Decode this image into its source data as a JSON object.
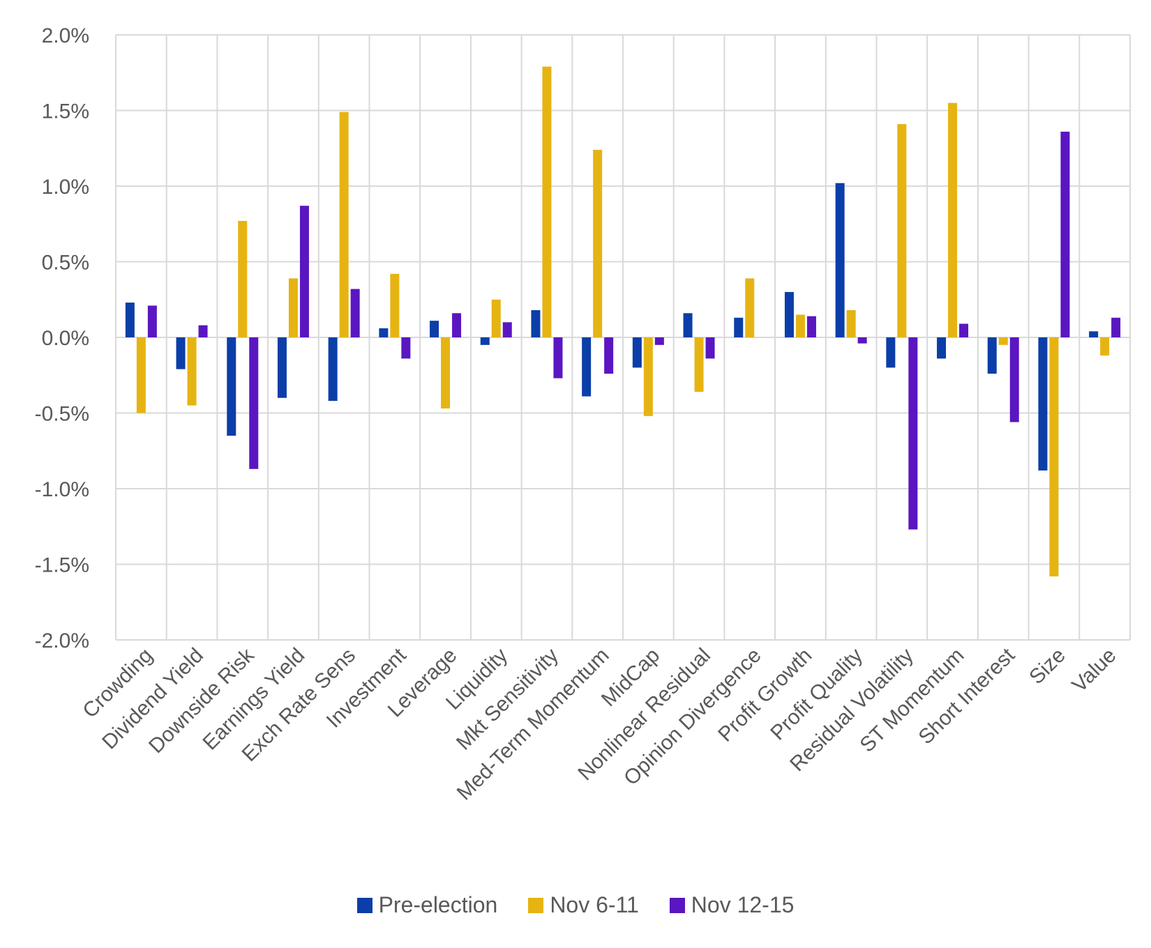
{
  "chart_data": {
    "type": "bar",
    "title": "",
    "xlabel": "",
    "ylabel": "",
    "ylim": [
      -2.0,
      2.0
    ],
    "yticks": [
      "2.0%",
      "1.5%",
      "1.0%",
      "0.5%",
      "0.0%",
      "-0.5%",
      "-1.0%",
      "-1.5%",
      "-2.0%"
    ],
    "ytick_values": [
      2.0,
      1.5,
      1.0,
      0.5,
      0.0,
      -0.5,
      -1.0,
      -1.5,
      -2.0
    ],
    "categories": [
      "Crowding",
      "Dividend Yield",
      "Downside Risk",
      "Earnings Yield",
      "Exch Rate Sens",
      "Investment",
      "Leverage",
      "Liquidity",
      "Mkt Sensitivity",
      "Med-Term Momentum",
      "MidCap",
      "Nonlinear Residual",
      "Opinion Divergence",
      "Profit Growth",
      "Profit Quality",
      "Residual Volatility",
      "ST Momentum",
      "Short Interest",
      "Size",
      "Value"
    ],
    "series": [
      {
        "name": "Pre-election",
        "color": "#0b3ea8",
        "values": [
          0.23,
          -0.21,
          -0.65,
          -0.4,
          -0.42,
          0.06,
          0.11,
          -0.05,
          0.18,
          -0.39,
          -0.2,
          0.16,
          0.13,
          0.3,
          1.02,
          -0.2,
          -0.14,
          -0.24,
          -0.88,
          0.04
        ]
      },
      {
        "name": "Nov 6-11",
        "color": "#e6b412",
        "values": [
          -0.5,
          -0.45,
          0.77,
          0.39,
          1.49,
          0.42,
          -0.47,
          0.25,
          1.79,
          1.24,
          -0.52,
          -0.36,
          0.39,
          0.15,
          0.18,
          1.41,
          1.55,
          -0.05,
          -1.58,
          -0.12
        ]
      },
      {
        "name": "Nov 12-15",
        "color": "#5a16c1",
        "values": [
          0.21,
          0.08,
          -0.87,
          0.87,
          0.32,
          -0.14,
          0.16,
          0.1,
          -0.27,
          -0.24,
          -0.05,
          -0.14,
          0.0,
          0.14,
          -0.04,
          -1.27,
          0.09,
          -0.56,
          1.36,
          0.13
        ]
      }
    ],
    "grid": true,
    "legend_position": "bottom"
  }
}
